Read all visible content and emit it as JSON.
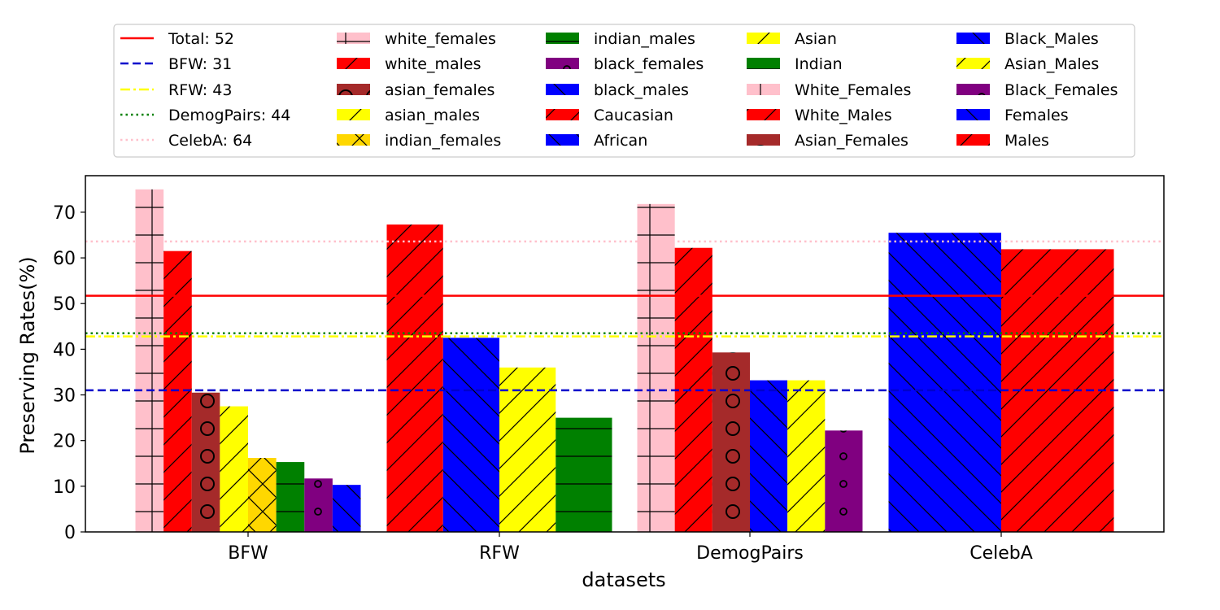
{
  "chart_data": {
    "type": "bar",
    "xlabel": "datasets",
    "ylabel": "Preserving Rates(%)",
    "ylim": [
      0,
      78
    ],
    "yticks": [
      0,
      10,
      20,
      30,
      40,
      50,
      60,
      70
    ],
    "grid": false,
    "legend_position": "top (above plot, outside), 5 columns",
    "groups": [
      {
        "name": "BFW",
        "bars": [
          {
            "label": "white_females",
            "value": 75,
            "color": "#ffc0cb",
            "hatch": "plus"
          },
          {
            "label": "white_males",
            "value": 61.5,
            "color": "#ff0000",
            "hatch": "slash"
          },
          {
            "label": "asian_females",
            "value": 30.5,
            "color": "#a52a2a",
            "hatch": "circle"
          },
          {
            "label": "asian_males",
            "value": 27.5,
            "color": "#ffff00",
            "hatch": "slash"
          },
          {
            "label": "indian_females",
            "value": 16.2,
            "color": "#ffd700",
            "hatch": "x"
          },
          {
            "label": "indian_males",
            "value": 15.3,
            "color": "#008000",
            "hatch": "dash"
          },
          {
            "label": "black_females",
            "value": 11.7,
            "color": "#800080",
            "hatch": "dot"
          },
          {
            "label": "black_males",
            "value": 10.3,
            "color": "#0000ff",
            "hatch": "backslash"
          }
        ]
      },
      {
        "name": "RFW",
        "bars": [
          {
            "label": "Caucasian",
            "value": 67.3,
            "color": "#ff0000",
            "hatch": "slash"
          },
          {
            "label": "African",
            "value": 42.5,
            "color": "#0000ff",
            "hatch": "backslash"
          },
          {
            "label": "Asian",
            "value": 36,
            "color": "#ffff00",
            "hatch": "slash"
          },
          {
            "label": "Indian",
            "value": 25,
            "color": "#008000",
            "hatch": "dash"
          }
        ]
      },
      {
        "name": "DemogPairs",
        "bars": [
          {
            "label": "White_Females",
            "value": 71.8,
            "color": "#ffc0cb",
            "hatch": "plus"
          },
          {
            "label": "White_Males",
            "value": 62.2,
            "color": "#ff0000",
            "hatch": "slash"
          },
          {
            "label": "Asian_Females",
            "value": 39.3,
            "color": "#a52a2a",
            "hatch": "circle"
          },
          {
            "label": "Black_Males",
            "value": 33.2,
            "color": "#0000ff",
            "hatch": "backslash"
          },
          {
            "label": "Asian_Males",
            "value": 33.2,
            "color": "#ffff00",
            "hatch": "slash"
          },
          {
            "label": "Black_Females",
            "value": 22.2,
            "color": "#800080",
            "hatch": "dot"
          }
        ]
      },
      {
        "name": "CelebA",
        "bars": [
          {
            "label": "Females",
            "value": 65.5,
            "color": "#0000ff",
            "hatch": "backslash"
          },
          {
            "label": "Males",
            "value": 61.9,
            "color": "#ff0000",
            "hatch": "slash"
          }
        ]
      }
    ],
    "reference_lines": [
      {
        "label": "Total: 52",
        "value": 51.7,
        "color": "#ff0000",
        "style": "solid"
      },
      {
        "label": "BFW: 31",
        "value": 31,
        "color": "#0000cc",
        "style": "dashed"
      },
      {
        "label": "RFW: 43",
        "value": 42.8,
        "color": "#ffff00",
        "style": "dashdot"
      },
      {
        "label": "DemogPairs: 44",
        "value": 43.5,
        "color": "#008000",
        "style": "dotted"
      },
      {
        "label": "CelebA: 64",
        "value": 63.6,
        "color": "#ffc0cb",
        "style": "dotted"
      }
    ],
    "legend_columns": [
      [
        "Total: 52",
        "BFW: 31",
        "RFW: 43",
        "DemogPairs: 44",
        "CelebA: 64"
      ],
      [
        "white_females",
        "white_males",
        "asian_females",
        "asian_males",
        "indian_females"
      ],
      [
        "indian_males",
        "black_females",
        "black_males",
        "Caucasian",
        "African"
      ],
      [
        "Asian",
        "Indian",
        "White_Females",
        "White_Males",
        "Asian_Females"
      ],
      [
        "Black_Males",
        "Asian_Males",
        "Black_Females",
        "Females",
        "Males"
      ]
    ]
  }
}
